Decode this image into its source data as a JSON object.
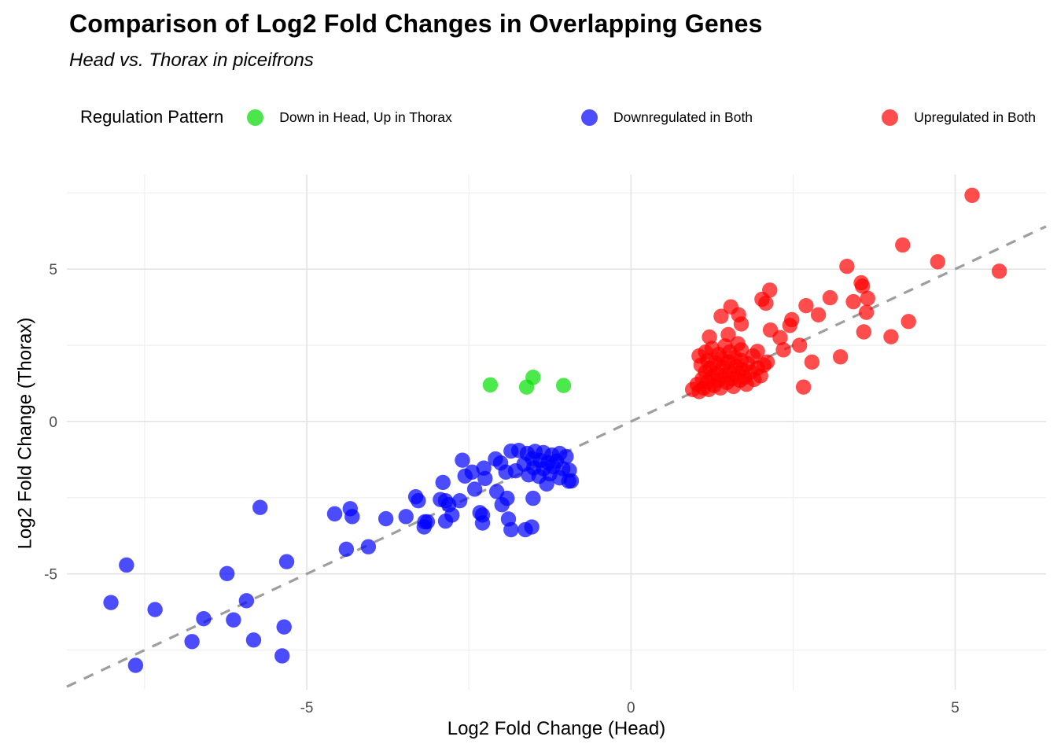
{
  "header": {
    "title": "Comparison of Log2 Fold Changes in Overlapping Genes",
    "subtitle": "Head vs. Thorax in piceifrons"
  },
  "legend": {
    "title": "Regulation Pattern",
    "position": "top",
    "items": [
      {
        "label": "Down in Head, Up in Thorax",
        "color": "#00E000",
        "display_color": "#4CE54C"
      },
      {
        "label": "Downregulated in Both",
        "color": "#0000FF",
        "display_color": "#4D4DFF"
      },
      {
        "label": "Upregulated in Both",
        "color": "#FF0000",
        "display_color": "#FF4D4D"
      }
    ]
  },
  "colors": {
    "grid_major": "#e3e3e3",
    "grid_minor": "#ededed",
    "reference_line": "#9e9e9e",
    "tick_text": "#4d4d4d"
  },
  "chart_data": {
    "type": "scatter",
    "title": "Comparison of Log2 Fold Changes in Overlapping Genes",
    "subtitle": "Head vs. Thorax in piceifrons",
    "xlabel": "Log2 Fold Change (Head)",
    "ylabel": "Log2 Fold Change (Thorax)",
    "xlim": [
      -8.7,
      6.4
    ],
    "ylim": [
      -8.8,
      8.1
    ],
    "x_major_ticks": [
      -5,
      0,
      5
    ],
    "x_minor_ticks": [
      -7.5,
      -2.5,
      2.5
    ],
    "y_major_ticks": [
      -5,
      0,
      5
    ],
    "y_minor_ticks": [
      -7.5,
      -2.5,
      2.5,
      7.5
    ],
    "grid": true,
    "reference_line": {
      "type": "identity y=x",
      "style": "dashed",
      "color": "#9e9e9e"
    },
    "point_alpha": 0.7,
    "point_radius_px": 9.7,
    "series": [
      {
        "name": "Down in Head, Up in Thorax",
        "color": "#00E000",
        "points": [
          [
            -2.17,
            1.2
          ],
          [
            -1.61,
            1.13
          ],
          [
            -1.51,
            1.45
          ],
          [
            -1.04,
            1.18
          ]
        ]
      },
      {
        "name": "Downregulated in Both",
        "color": "#0000FF",
        "points": [
          [
            -8.02,
            -5.94
          ],
          [
            -7.78,
            -4.71
          ],
          [
            -7.64,
            -8.0
          ],
          [
            -7.34,
            -6.17
          ],
          [
            -6.77,
            -7.22
          ],
          [
            -6.59,
            -6.47
          ],
          [
            -6.23,
            -4.99
          ],
          [
            -6.13,
            -6.51
          ],
          [
            -5.93,
            -5.88
          ],
          [
            -5.82,
            -7.17
          ],
          [
            -5.38,
            -7.69
          ],
          [
            -5.35,
            -6.74
          ],
          [
            -5.31,
            -4.6
          ],
          [
            -5.72,
            -2.82
          ],
          [
            -4.57,
            -3.03
          ],
          [
            -4.39,
            -4.19
          ],
          [
            -4.33,
            -2.86
          ],
          [
            -4.3,
            -3.12
          ],
          [
            -4.05,
            -4.11
          ],
          [
            -3.78,
            -3.19
          ],
          [
            -3.47,
            -3.12
          ],
          [
            -3.32,
            -2.47
          ],
          [
            -3.28,
            -2.6
          ],
          [
            -3.19,
            -3.46
          ],
          [
            -3.14,
            -3.29
          ],
          [
            -3.18,
            -3.29
          ],
          [
            -2.94,
            -2.56
          ],
          [
            -2.9,
            -2.0
          ],
          [
            -2.86,
            -2.6
          ],
          [
            -2.81,
            -2.73
          ],
          [
            -2.86,
            -3.27
          ],
          [
            -2.76,
            -3.07
          ],
          [
            -2.64,
            -2.6
          ],
          [
            -2.56,
            -1.79
          ],
          [
            -2.6,
            -1.27
          ],
          [
            -2.45,
            -1.66
          ],
          [
            -2.41,
            -2.22
          ],
          [
            -2.33,
            -2.99
          ],
          [
            -2.29,
            -3.07
          ],
          [
            -2.29,
            -3.33
          ],
          [
            -2.27,
            -1.53
          ],
          [
            -2.25,
            -1.87
          ],
          [
            -2.09,
            -1.23
          ],
          [
            -2.07,
            -2.3
          ],
          [
            -2.01,
            -1.36
          ],
          [
            -1.99,
            -2.73
          ],
          [
            -1.93,
            -1.66
          ],
          [
            -1.91,
            -2.52
          ],
          [
            -1.89,
            -3.2
          ],
          [
            -1.85,
            -3.55
          ],
          [
            -1.85,
            -0.97
          ],
          [
            -1.63,
            -3.55
          ],
          [
            -1.53,
            -3.46
          ],
          [
            -1.51,
            -2.52
          ],
          [
            -0.96,
            -1.96
          ],
          [
            -1.73,
            -0.95
          ],
          [
            -1.6,
            -1.05
          ],
          [
            -1.48,
            -0.98
          ],
          [
            -1.35,
            -1.02
          ],
          [
            -1.22,
            -1.1
          ],
          [
            -1.1,
            -1.05
          ],
          [
            -1.0,
            -1.15
          ],
          [
            -1.52,
            -1.22
          ],
          [
            -1.4,
            -1.28
          ],
          [
            -1.28,
            -1.35
          ],
          [
            -1.15,
            -1.3
          ],
          [
            -1.65,
            -1.4
          ],
          [
            -1.5,
            -1.52
          ],
          [
            -1.35,
            -1.55
          ],
          [
            -1.2,
            -1.48
          ],
          [
            -1.05,
            -1.55
          ],
          [
            -1.78,
            -1.62
          ],
          [
            -1.58,
            -1.75
          ],
          [
            -1.42,
            -1.8
          ],
          [
            -1.25,
            -1.72
          ],
          [
            -1.1,
            -1.85
          ],
          [
            -0.95,
            -1.6
          ],
          [
            -0.92,
            -1.95
          ],
          [
            -1.3,
            -2.05
          ]
        ]
      },
      {
        "name": "Upregulated in Both",
        "color": "#FF0000",
        "points": [
          [
            0.95,
            1.05
          ],
          [
            1.02,
            1.22
          ],
          [
            1.05,
            0.98
          ],
          [
            1.1,
            1.4
          ],
          [
            1.12,
            1.1
          ],
          [
            1.15,
            1.62
          ],
          [
            1.18,
            1.3
          ],
          [
            1.2,
            1.05
          ],
          [
            1.22,
            1.75
          ],
          [
            1.25,
            1.48
          ],
          [
            1.28,
            1.18
          ],
          [
            1.3,
            1.92
          ],
          [
            1.32,
            1.6
          ],
          [
            1.35,
            1.35
          ],
          [
            1.38,
            1.1
          ],
          [
            1.4,
            2.05
          ],
          [
            1.42,
            1.78
          ],
          [
            1.45,
            1.52
          ],
          [
            1.48,
            1.28
          ],
          [
            1.5,
            1.95
          ],
          [
            1.52,
            1.65
          ],
          [
            1.55,
            1.4
          ],
          [
            1.58,
            1.15
          ],
          [
            1.6,
            2.1
          ],
          [
            1.62,
            1.82
          ],
          [
            1.65,
            1.58
          ],
          [
            1.68,
            1.35
          ],
          [
            1.7,
            2.0
          ],
          [
            1.72,
            1.7
          ],
          [
            1.75,
            1.45
          ],
          [
            1.78,
            1.22
          ],
          [
            1.8,
            1.9
          ],
          [
            1.85,
            1.62
          ],
          [
            1.9,
            1.38
          ],
          [
            1.95,
            1.75
          ],
          [
            2.0,
            1.5
          ],
          [
            2.05,
            1.85
          ],
          [
            1.08,
            1.85
          ],
          [
            1.18,
            2.0
          ],
          [
            1.35,
            2.2
          ],
          [
            1.52,
            2.28
          ],
          [
            1.7,
            2.35
          ],
          [
            1.88,
            2.15
          ],
          [
            1.25,
            2.4
          ],
          [
            1.45,
            2.48
          ],
          [
            1.65,
            2.55
          ],
          [
            1.05,
            2.15
          ],
          [
            1.15,
            2.28
          ],
          [
            1.95,
            2.3
          ],
          [
            2.1,
            1.95
          ],
          [
            1.21,
            2.77
          ],
          [
            1.5,
            2.85
          ],
          [
            1.7,
            3.2
          ],
          [
            1.39,
            3.45
          ],
          [
            1.54,
            3.76
          ],
          [
            1.66,
            3.5
          ],
          [
            2.02,
            4.01
          ],
          [
            2.08,
            3.88
          ],
          [
            2.14,
            4.31
          ],
          [
            2.48,
            3.34
          ],
          [
            2.7,
            3.8
          ],
          [
            2.89,
            3.5
          ],
          [
            2.15,
            3.0
          ],
          [
            2.3,
            2.75
          ],
          [
            2.45,
            3.15
          ],
          [
            2.6,
            2.5
          ],
          [
            2.35,
            2.35
          ],
          [
            3.07,
            4.06
          ],
          [
            3.33,
            5.09
          ],
          [
            3.43,
            3.93
          ],
          [
            3.57,
            4.44
          ],
          [
            2.66,
            1.13
          ],
          [
            2.79,
            1.95
          ],
          [
            3.23,
            2.12
          ],
          [
            3.55,
            4.55
          ],
          [
            3.65,
            4.04
          ],
          [
            3.63,
            3.58
          ],
          [
            4.28,
            3.28
          ],
          [
            4.01,
            2.78
          ],
          [
            3.59,
            2.94
          ],
          [
            4.19,
            5.79
          ],
          [
            4.73,
            5.24
          ],
          [
            5.26,
            7.42
          ],
          [
            5.68,
            4.93
          ]
        ]
      }
    ]
  }
}
